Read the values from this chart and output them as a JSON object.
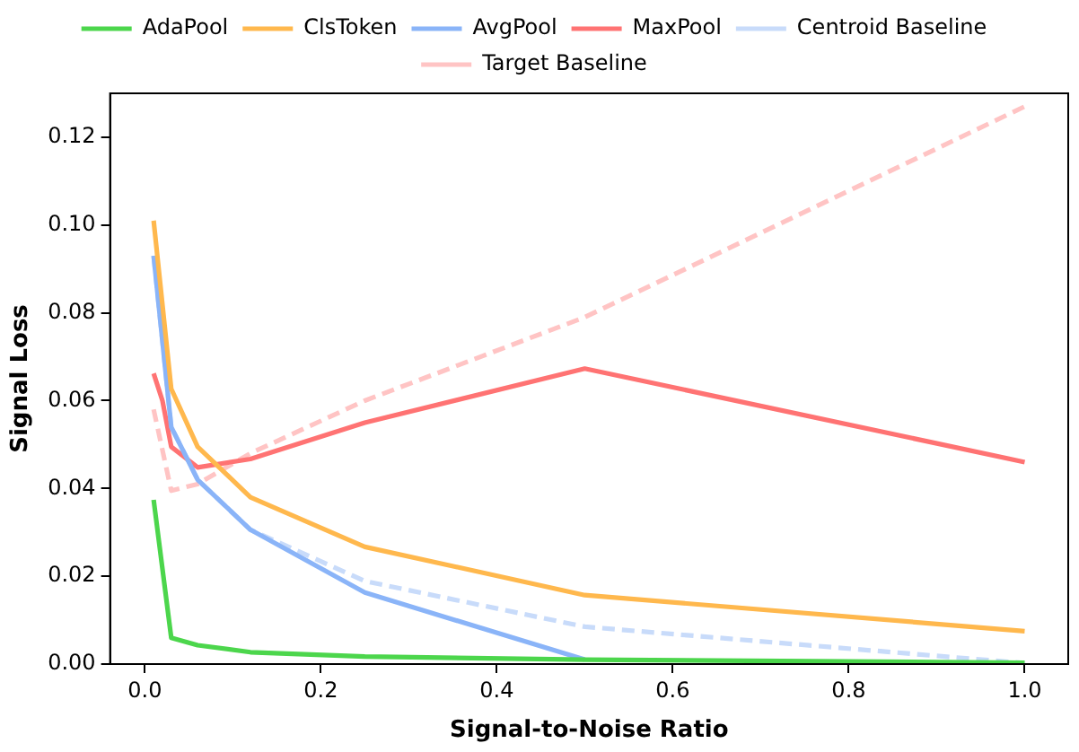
{
  "chart_data": {
    "type": "line",
    "xlabel": "Signal-to-Noise Ratio",
    "ylabel": "Signal Loss",
    "x": [
      0.01,
      0.02,
      0.03,
      0.06,
      0.12,
      0.25,
      0.5,
      1.0
    ],
    "series": [
      {
        "name": "AdaPool",
        "color": "#4cd64c",
        "values": [
          0.0374,
          null,
          0.006,
          0.0043,
          0.0027,
          0.0017,
          0.001,
          0.0003
        ]
      },
      {
        "name": "ClsToken",
        "color": "#ffb84d",
        "values": [
          0.101,
          null,
          0.0627,
          0.0495,
          0.038,
          0.0267,
          0.0157,
          0.0075
        ]
      },
      {
        "name": "AvgPool",
        "color": "#8ab4f8",
        "values": [
          0.093,
          null,
          0.054,
          0.042,
          0.0306,
          0.0163,
          0.001,
          null
        ]
      },
      {
        "name": "MaxPool",
        "color": "#ff7373",
        "values": [
          0.0662,
          0.06,
          0.0495,
          0.0448,
          0.0467,
          0.055,
          0.0673,
          0.046
        ]
      },
      {
        "name": "Centroid Baseline",
        "color": "#c8dbfa",
        "line_style": "dashed",
        "values": [
          0.093,
          null,
          0.054,
          0.042,
          0.0306,
          0.0189,
          0.0085,
          0.0002
        ]
      },
      {
        "name": "Target Baseline",
        "color": "#ffc4c4",
        "line_style": "dashed",
        "values": [
          0.058,
          null,
          0.0395,
          0.041,
          0.048,
          0.06,
          0.079,
          0.127
        ]
      }
    ],
    "xlim": [
      -0.0395,
      1.0495
    ],
    "xticks": [
      {
        "value": 0,
        "label": "0.0"
      },
      0.2,
      0.4,
      0.6,
      0.8,
      {
        "value": 1,
        "label": "1.0"
      }
    ],
    "ylim": [
      0,
      0.13
    ],
    "yticks": [
      {
        "value": 0,
        "label": "0.00"
      },
      0.02,
      0.04,
      0.06,
      0.08,
      {
        "value": 0.1,
        "label": "0.10"
      },
      0.12
    ],
    "legend": "top",
    "marker": "none",
    "line_style": "solid",
    "grid": false
  }
}
